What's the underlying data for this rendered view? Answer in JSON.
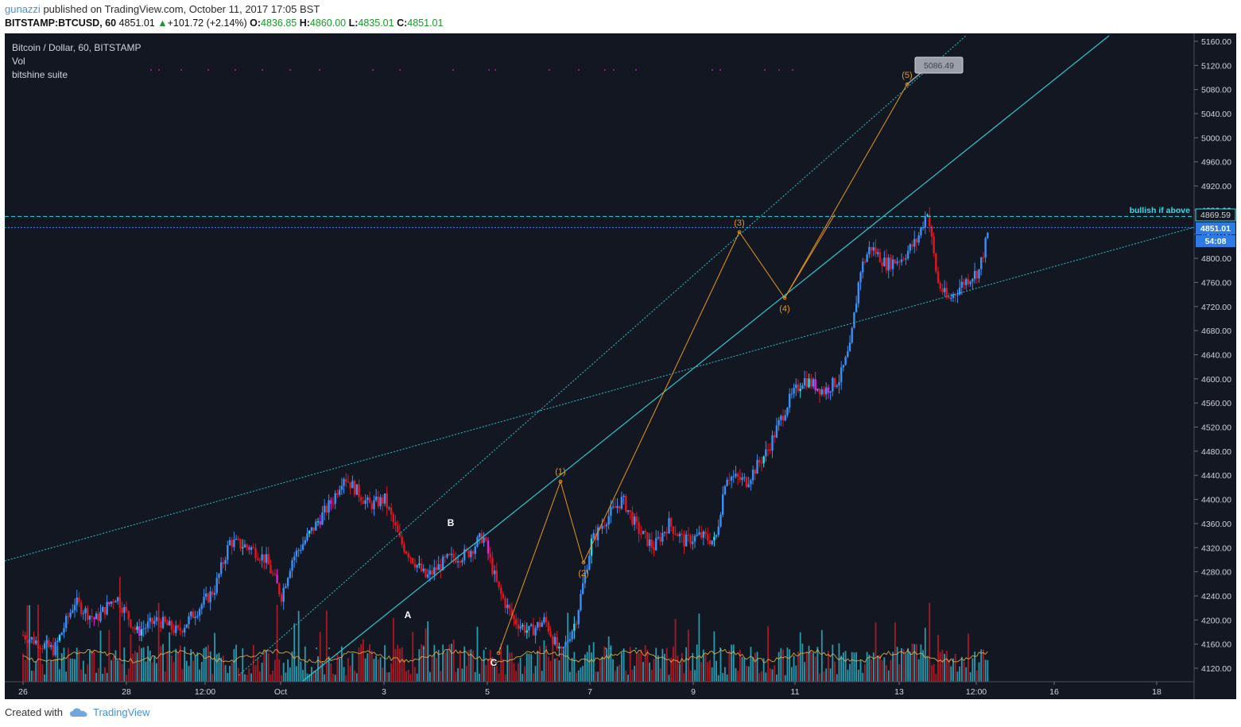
{
  "header": {
    "username": "gunazzi",
    "published_text": "published on TradingView.com, October 11, 2017 17:05 BST",
    "symbol": "BITSTAMP:BTCUSD, 60",
    "last": "4851.01",
    "change": "+101.72 (+2.14%)",
    "o_label": "O:",
    "o_value": "4836.85",
    "h_label": "H:",
    "h_value": "4860.00",
    "l_label": "L:",
    "l_value": "4835.01",
    "c_label": "C:",
    "c_value": "4851.01"
  },
  "legend": {
    "series_title": "Bitcoin / Dollar, 60, BITSTAMP",
    "indicator_vol": "Vol",
    "indicator_suite": "bitshine suite"
  },
  "annotations": {
    "bullish_text": "bullish if above",
    "bullish_level": "4869.59",
    "current_price": "4851.01",
    "countdown": "54:08",
    "target_callout": "5086.49",
    "wave_labels": [
      "(1)",
      "(2)",
      "(3)",
      "(4)",
      "(5)"
    ],
    "correction_labels": [
      "A",
      "B",
      "C"
    ]
  },
  "footer": {
    "created_with": "Created with",
    "brand": "TradingView"
  },
  "colors": {
    "background": "#131722",
    "bull": "#3b8ff5",
    "bear": "#e0161f",
    "accent_cyan": "#26e0f0",
    "accent_magenta": "#e91edd",
    "trendline": "#2fc6cf",
    "wave": "#e8961c"
  },
  "chart_data": {
    "type": "candlestick",
    "symbol": "BTCUSD",
    "exchange": "BITSTAMP",
    "interval": "60",
    "ylim": [
      4100,
      5180
    ],
    "y_ticks": [
      5160,
      5120,
      5080,
      5040,
      5000,
      4960,
      4920,
      4880,
      4840,
      4800,
      4760,
      4720,
      4680,
      4640,
      4600,
      4560,
      4520,
      4480,
      4440,
      4400,
      4360,
      4320,
      4280,
      4240,
      4200,
      4160,
      4120
    ],
    "x_ticks": [
      "26",
      "28",
      "12:00",
      "Oct",
      "3",
      "5",
      "7",
      "9",
      "11",
      "13",
      "12:00",
      "16",
      "18"
    ],
    "price_path": [
      {
        "date": "Sep 26",
        "price": 4180
      },
      {
        "date": "Sep 28",
        "price": 4210
      },
      {
        "date": "Sep 29",
        "price": 4200
      },
      {
        "date": "Oct 1",
        "price": 4340
      },
      {
        "date": "Oct 2",
        "price": 4440
      },
      {
        "date": "Oct 3",
        "price": 4290
      },
      {
        "date": "Oct 4",
        "price": 4330
      },
      {
        "date": "Oct 5",
        "price": 4130
      },
      {
        "date": "Oct 6",
        "price": 4420
      },
      {
        "date": "Oct 7",
        "price": 4320
      },
      {
        "date": "Oct 8",
        "price": 4450
      },
      {
        "date": "Oct 9",
        "price": 4600
      },
      {
        "date": "Oct 10",
        "price": 4840
      },
      {
        "date": "Oct 11",
        "price": 4851.01
      }
    ],
    "levels": {
      "bullish_if_above": 4869.59,
      "last_close": 4851.01,
      "target": 5086.49
    },
    "elliott_wave": [
      {
        "label": "(1)",
        "date": "Oct 6",
        "price": 4430
      },
      {
        "label": "(2)",
        "date": "Oct 6",
        "price": 4295
      },
      {
        "label": "(3)",
        "date": "Oct 9",
        "price": 4845
      },
      {
        "label": "(4)",
        "date": "Oct 10",
        "price": 4735
      },
      {
        "label": "(5)",
        "date": "Oct 13",
        "price": 5086.49
      }
    ],
    "abc_correction": [
      {
        "label": "A",
        "date": "Oct 3",
        "price": 4230
      },
      {
        "label": "B",
        "date": "Oct 4",
        "price": 4340
      },
      {
        "label": "C",
        "date": "Oct 5",
        "price": 4130
      }
    ]
  }
}
